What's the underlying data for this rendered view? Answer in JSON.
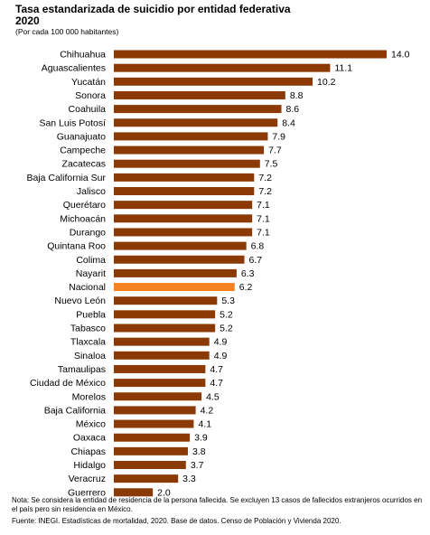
{
  "header": {
    "title_line1": "Tasa estandarizada de suicidio por entidad federativa",
    "title_line2": "2020",
    "subtitle": "(Por cada 100 000 habitantes)"
  },
  "footer": {
    "note": "Nota: Se considera la entidad de residencia de la persona fallecida. Se excluyen 13 casos de fallecidos extranjeros ocurridos en el país pero sin residencia en México.",
    "source": "Fuente: INEGI. Estadísticas de mortalidad, 2020. Base de datos. Censo de Población y Vivienda 2020."
  },
  "colors": {
    "bar": "#8B3A06",
    "highlight": "#F58220"
  },
  "chart_data": {
    "type": "bar",
    "orientation": "horizontal",
    "title": "Tasa estandarizada de suicidio por entidad federativa 2020",
    "subtitle": "(Por cada 100 000 habitantes)",
    "categories": [
      "Chihuahua",
      "Aguascalientes",
      "Yucatán",
      "Sonora",
      "Coahuila",
      "San Luis Potosí",
      "Guanajuato",
      "Campeche",
      "Zacatecas",
      "Baja California Sur",
      "Jalisco",
      "Querétaro",
      "Michoacán",
      "Durango",
      "Quintana Roo",
      "Colima",
      "Nayarit",
      "Nacional",
      "Nuevo León",
      "Puebla",
      "Tabasco",
      "Tlaxcala",
      "Sinaloa",
      "Tamaulipas",
      "Ciudad de México",
      "Morelos",
      "Baja California",
      "México",
      "Oaxaca",
      "Chiapas",
      "Hidalgo",
      "Veracruz",
      "Guerrero"
    ],
    "values": [
      14.0,
      11.1,
      10.2,
      8.8,
      8.6,
      8.4,
      7.9,
      7.7,
      7.5,
      7.2,
      7.2,
      7.1,
      7.1,
      7.1,
      6.8,
      6.7,
      6.3,
      6.2,
      5.3,
      5.2,
      5.2,
      4.9,
      4.9,
      4.7,
      4.7,
      4.5,
      4.2,
      4.1,
      3.9,
      3.8,
      3.7,
      3.3,
      2.0
    ],
    "labels": [
      "14.0",
      "11.1",
      "10.2",
      "8.8",
      "8.6",
      "8.4",
      "7.9",
      "7.7",
      "7.5",
      "7.2",
      "7.2",
      "7.1",
      "7.1",
      "7.1",
      "6.8",
      "6.7",
      "6.3",
      "6.2",
      "5.3",
      "5.2",
      "5.2",
      "4.9",
      "4.9",
      "4.7",
      "4.7",
      "4.5",
      "4.2",
      "4.1",
      "3.9",
      "3.8",
      "3.7",
      "3.3",
      "2.0"
    ],
    "highlight": "Nacional",
    "xlim": [
      0,
      14.0
    ],
    "grid": false,
    "legend": "none"
  }
}
